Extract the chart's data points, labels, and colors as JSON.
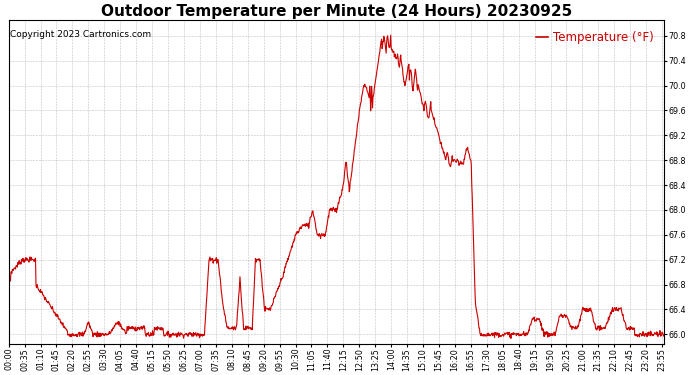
{
  "title": "Outdoor Temperature per Minute (24 Hours) 20230925",
  "copyright_text": "Copyright 2023 Cartronics.com",
  "legend_label": "Temperature (°F)",
  "line_color": "#cc0000",
  "background_color": "#ffffff",
  "grid_color": "#bbbbbb",
  "ylim": [
    65.85,
    71.05
  ],
  "yticks": [
    66.0,
    66.4,
    66.8,
    67.2,
    67.6,
    68.0,
    68.4,
    68.8,
    69.2,
    69.6,
    70.0,
    70.4,
    70.8
  ],
  "title_fontsize": 11,
  "copyright_fontsize": 6.5,
  "legend_fontsize": 8.5,
  "tick_fontsize": 5.8,
  "fig_width": 6.9,
  "fig_height": 3.75,
  "dpi": 100
}
